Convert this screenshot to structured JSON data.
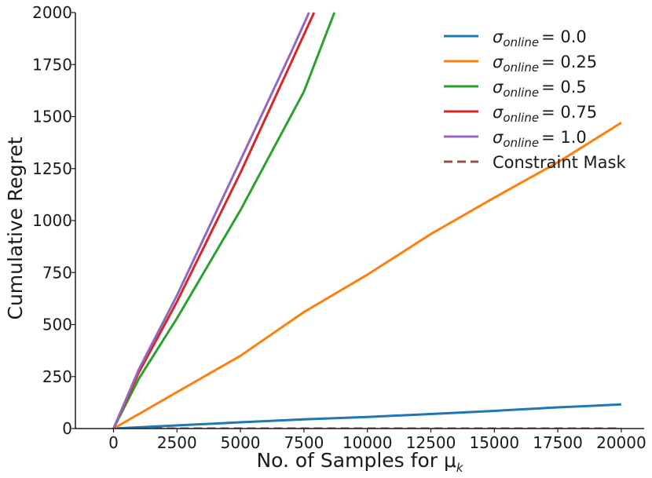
{
  "chart_data": {
    "type": "line",
    "xlabel": "No. of Samples for μ",
    "xlabel_sub": "k",
    "ylabel": "Cumulative Regret",
    "xlim": [
      -1500,
      20900
    ],
    "ylim": [
      0,
      2000
    ],
    "xticks": [
      0,
      2500,
      5000,
      7500,
      10000,
      12500,
      15000,
      17500,
      20000
    ],
    "yticks": [
      0,
      250,
      500,
      750,
      1000,
      1250,
      1500,
      1750,
      2000
    ],
    "grid": false,
    "legend_position": "top-right",
    "series": [
      {
        "name": "σ_online = 0.0",
        "legend_symbol": "σ",
        "legend_sub": "online",
        "legend_value": "= 0.0",
        "color": "#1f77b4",
        "dashed": false,
        "x": [
          0,
          2500,
          5000,
          7500,
          10000,
          12500,
          15000,
          17500,
          20000
        ],
        "y": [
          0,
          15,
          30,
          44,
          56,
          70,
          85,
          102,
          116
        ]
      },
      {
        "name": "σ_online = 0.25",
        "legend_symbol": "σ",
        "legend_sub": "online",
        "legend_value": "= 0.25",
        "color": "#ff7f0e",
        "dashed": false,
        "x": [
          0,
          2500,
          5000,
          7500,
          10000,
          12500,
          15000,
          17500,
          20000
        ],
        "y": [
          0,
          175,
          350,
          560,
          740,
          935,
          1110,
          1280,
          1470
        ]
      },
      {
        "name": "σ_online = 0.5",
        "legend_symbol": "σ",
        "legend_sub": "online",
        "legend_value": "= 0.5",
        "color": "#2ca02c",
        "dashed": false,
        "x": [
          0,
          1000,
          2500,
          5000,
          7500,
          8700
        ],
        "y": [
          0,
          240,
          530,
          1050,
          1620,
          2000
        ]
      },
      {
        "name": "σ_online = 0.75",
        "legend_symbol": "σ",
        "legend_sub": "online",
        "legend_value": "= 0.75",
        "color": "#d62728",
        "dashed": false,
        "x": [
          0,
          1000,
          2500,
          5000,
          7000,
          7900
        ],
        "y": [
          0,
          270,
          610,
          1230,
          1760,
          2000
        ]
      },
      {
        "name": "σ_online = 1.0",
        "legend_symbol": "σ",
        "legend_sub": "online",
        "legend_value": "= 1.0",
        "color": "#9467bd",
        "dashed": false,
        "x": [
          0,
          1000,
          2500,
          5000,
          7000,
          7700
        ],
        "y": [
          0,
          285,
          640,
          1290,
          1810,
          2000
        ]
      },
      {
        "name": "Constraint Mask",
        "legend_symbol": "",
        "legend_sub": "",
        "legend_value": "Constraint Mask",
        "color": "#8c564b",
        "dashed": true,
        "x": [
          0,
          20000
        ],
        "y": [
          0,
          0
        ]
      }
    ]
  }
}
